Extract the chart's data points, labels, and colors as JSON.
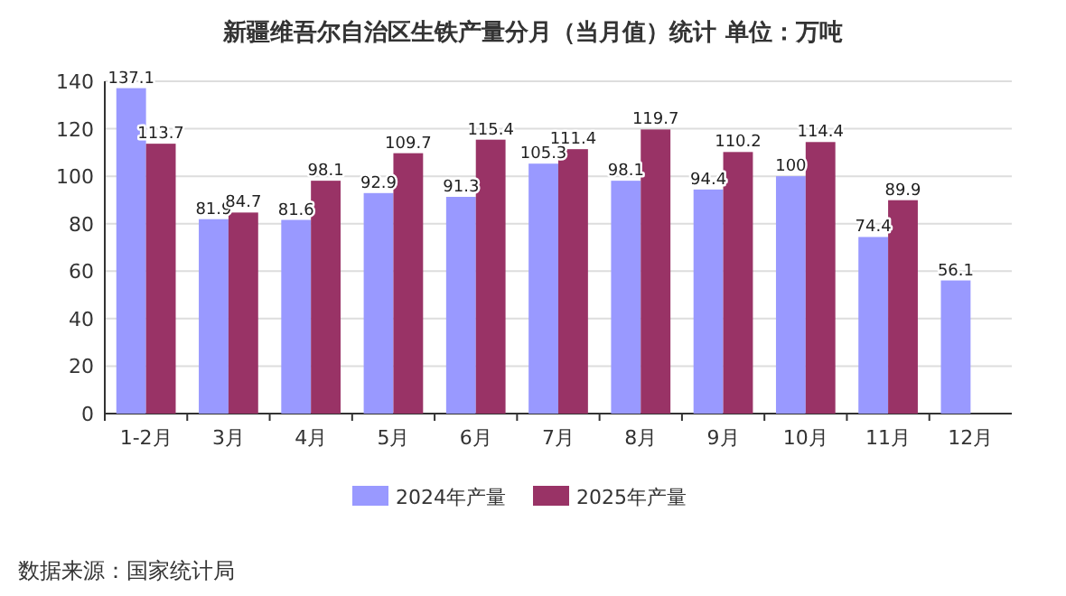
{
  "chart_data": {
    "type": "bar",
    "title": "新疆维吾尔自治区生铁产量分月（当月值）统计  单位：万吨",
    "categories": [
      "1-2月",
      "3月",
      "4月",
      "5月",
      "6月",
      "7月",
      "8月",
      "9月",
      "10月",
      "11月",
      "12月"
    ],
    "series": [
      {
        "name": "2024年产量",
        "color": "#9999ff",
        "values": [
          137.1,
          81.9,
          81.6,
          92.9,
          91.3,
          105.3,
          98.1,
          94.4,
          100,
          74.4,
          56.1
        ]
      },
      {
        "name": "2025年产量",
        "color": "#993366",
        "values": [
          113.7,
          84.7,
          98.1,
          109.7,
          115.4,
          111.4,
          119.7,
          110.2,
          114.4,
          89.9,
          null
        ]
      }
    ],
    "ylim": [
      0,
      140
    ],
    "yticks": [
      0,
      20,
      40,
      60,
      80,
      100,
      120,
      140
    ],
    "grid": "y",
    "legend": "bottom",
    "data_labels": true,
    "annotations": [
      "数据来源：国家统计局"
    ]
  }
}
